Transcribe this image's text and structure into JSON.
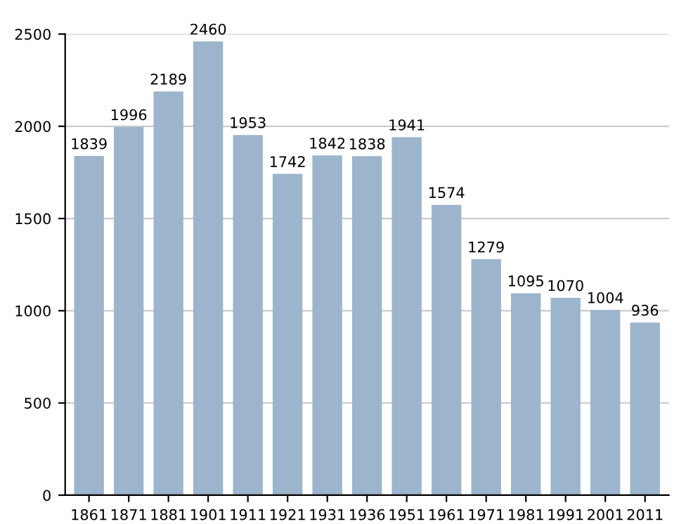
{
  "chart_data": {
    "type": "bar",
    "categories": [
      "1861",
      "1871",
      "1881",
      "1901",
      "1911",
      "1921",
      "1931",
      "1936",
      "1951",
      "1961",
      "1971",
      "1981",
      "1991",
      "2001",
      "2011"
    ],
    "values": [
      1839,
      1996,
      2189,
      2460,
      1953,
      1742,
      1842,
      1838,
      1941,
      1574,
      1279,
      1095,
      1070,
      1004,
      936
    ],
    "color": "#9db4cd",
    "data_labels": true,
    "ylim": [
      0,
      2500
    ],
    "yticks": [
      0,
      500,
      1000,
      1500,
      2000,
      2500
    ],
    "grid": "y"
  }
}
